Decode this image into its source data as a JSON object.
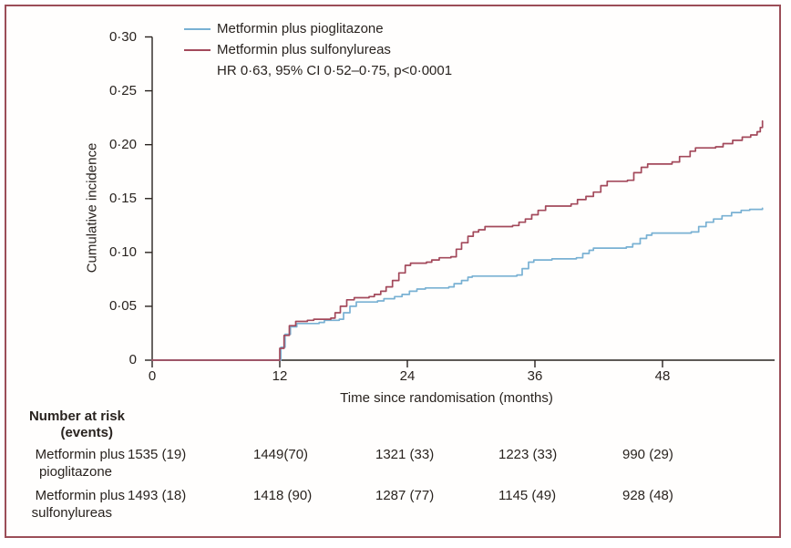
{
  "figure": {
    "border_color": "#9b4e58",
    "background": "#ffffff",
    "text_color": "#29231f"
  },
  "legend": {
    "entries": [
      {
        "label": "Metformin plus pioglitazone",
        "color": "#79b1d3"
      },
      {
        "label": "Metformin plus sulfonylureas",
        "color": "#a3495b"
      }
    ],
    "annotation": "HR 0·63, 95% CI 0·52–0·75, p<0·0001"
  },
  "chart_data": {
    "type": "line",
    "step": true,
    "title": "",
    "xlabel": "Time since randomisation (months)",
    "ylabel": "Cumulative incidence",
    "xlim": [
      0,
      58.5
    ],
    "ylim": [
      0,
      0.3
    ],
    "grid": false,
    "legend_position": "top-left",
    "x_ticks": {
      "values": [
        0,
        12,
        24,
        36,
        48
      ],
      "labels": [
        "0",
        "12",
        "24",
        "36",
        "48"
      ]
    },
    "y_ticks": {
      "values": [
        0,
        0.05,
        0.1,
        0.15,
        0.2,
        0.25,
        0.3
      ],
      "labels": [
        "0",
        "0·05",
        "0·10",
        "0·15",
        "0·20",
        "0·25",
        "0·30"
      ]
    },
    "series": [
      {
        "name": "Metformin plus pioglitazone",
        "color": "#79b1d3",
        "points": [
          [
            0,
            0
          ],
          [
            11.7,
            0
          ],
          [
            12.1,
            0.012
          ],
          [
            12.5,
            0.024
          ],
          [
            13,
            0.031
          ],
          [
            13.6,
            0.034
          ],
          [
            15.7,
            0.035
          ],
          [
            16.2,
            0.037
          ],
          [
            17.6,
            0.038
          ],
          [
            18,
            0.044
          ],
          [
            18.6,
            0.05
          ],
          [
            19.2,
            0.054
          ],
          [
            21.2,
            0.055
          ],
          [
            21.8,
            0.057
          ],
          [
            22.8,
            0.059
          ],
          [
            23.5,
            0.061
          ],
          [
            24.2,
            0.064
          ],
          [
            24.9,
            0.066
          ],
          [
            25.7,
            0.067
          ],
          [
            27.9,
            0.068
          ],
          [
            28.4,
            0.071
          ],
          [
            29.1,
            0.074
          ],
          [
            29.7,
            0.077
          ],
          [
            30.1,
            0.078
          ],
          [
            34.3,
            0.079
          ],
          [
            34.8,
            0.085
          ],
          [
            35.4,
            0.091
          ],
          [
            35.9,
            0.093
          ],
          [
            37.6,
            0.094
          ],
          [
            39.9,
            0.095
          ],
          [
            40.5,
            0.099
          ],
          [
            41.1,
            0.102
          ],
          [
            41.5,
            0.104
          ],
          [
            44.6,
            0.105
          ],
          [
            45.2,
            0.108
          ],
          [
            45.9,
            0.113
          ],
          [
            46.5,
            0.116
          ],
          [
            47,
            0.118
          ],
          [
            50.7,
            0.119
          ],
          [
            51.4,
            0.124
          ],
          [
            52.1,
            0.128
          ],
          [
            52.8,
            0.131
          ],
          [
            53.6,
            0.134
          ],
          [
            54.5,
            0.137
          ],
          [
            55.4,
            0.139
          ],
          [
            56.2,
            0.14
          ],
          [
            57.4,
            0.141
          ]
        ]
      },
      {
        "name": "Metformin plus sulfonylureas",
        "color": "#a3495b",
        "points": [
          [
            0,
            0
          ],
          [
            11.6,
            0
          ],
          [
            12,
            0.011
          ],
          [
            12.4,
            0.023
          ],
          [
            12.9,
            0.032
          ],
          [
            13.5,
            0.036
          ],
          [
            14.6,
            0.037
          ],
          [
            15.2,
            0.038
          ],
          [
            16.8,
            0.039
          ],
          [
            17.2,
            0.044
          ],
          [
            17.7,
            0.05
          ],
          [
            18.3,
            0.056
          ],
          [
            19,
            0.058
          ],
          [
            20.4,
            0.059
          ],
          [
            20.9,
            0.061
          ],
          [
            21.5,
            0.064
          ],
          [
            22,
            0.068
          ],
          [
            22.6,
            0.074
          ],
          [
            23.2,
            0.081
          ],
          [
            23.8,
            0.088
          ],
          [
            24.3,
            0.09
          ],
          [
            25.8,
            0.091
          ],
          [
            26.3,
            0.093
          ],
          [
            27,
            0.095
          ],
          [
            28.1,
            0.096
          ],
          [
            28.6,
            0.103
          ],
          [
            29.1,
            0.109
          ],
          [
            29.7,
            0.115
          ],
          [
            30.2,
            0.119
          ],
          [
            30.7,
            0.121
          ],
          [
            31.3,
            0.124
          ],
          [
            33.9,
            0.125
          ],
          [
            34.5,
            0.128
          ],
          [
            35.1,
            0.131
          ],
          [
            35.7,
            0.135
          ],
          [
            36.3,
            0.139
          ],
          [
            37,
            0.143
          ],
          [
            39.4,
            0.145
          ],
          [
            40,
            0.149
          ],
          [
            40.8,
            0.152
          ],
          [
            41.5,
            0.156
          ],
          [
            42.2,
            0.162
          ],
          [
            42.8,
            0.166
          ],
          [
            44.7,
            0.167
          ],
          [
            45.3,
            0.174
          ],
          [
            46,
            0.179
          ],
          [
            46.6,
            0.182
          ],
          [
            48.9,
            0.184
          ],
          [
            49.6,
            0.189
          ],
          [
            50.6,
            0.194
          ],
          [
            51.1,
            0.197
          ],
          [
            53,
            0.198
          ],
          [
            53.7,
            0.201
          ],
          [
            54.6,
            0.204
          ],
          [
            55.5,
            0.207
          ],
          [
            56.3,
            0.209
          ],
          [
            56.9,
            0.212
          ],
          [
            57.2,
            0.216
          ],
          [
            57.4,
            0.222
          ]
        ]
      }
    ],
    "annotation": "HR 0·63, 95% CI 0·52–0·75, p<0·0001"
  },
  "at_risk": {
    "title_line1": "Number at risk",
    "title_line2": "(events)",
    "column_months": [
      0,
      12,
      24,
      36,
      48
    ],
    "rows": [
      {
        "label_line1": "Metformin plus",
        "label_line2": "pioglitazone",
        "values": [
          "1535 (19)",
          "1449(70)",
          "1321 (33)",
          "1223 (33)",
          "990 (29)"
        ]
      },
      {
        "label_line1": "Metformin plus",
        "label_line2": "sulfonylureas",
        "values": [
          "1493 (18)",
          "1418 (90)",
          "1287 (77)",
          "1145 (49)",
          "928 (48)"
        ]
      }
    ]
  }
}
